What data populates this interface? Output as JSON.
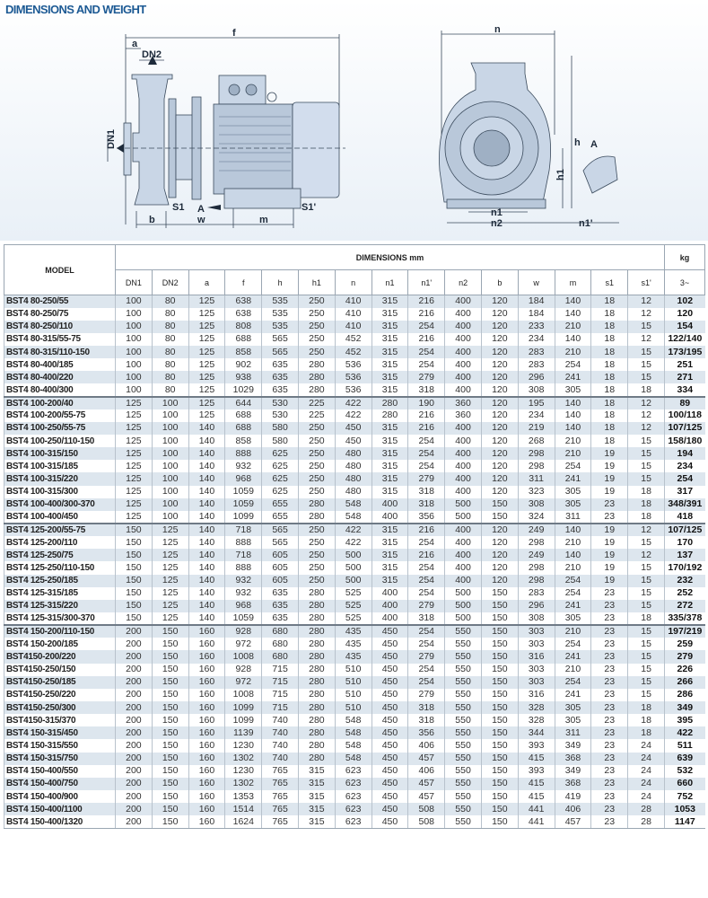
{
  "title": "DIMENSIONS AND WEIGHT",
  "drawing_labels": {
    "f": "f",
    "a": "a",
    "dn2": "DN2",
    "dn1": "DN1",
    "view_a": "A",
    "b": "b",
    "s1": "S1",
    "w": "w",
    "m": "m",
    "s1p": "S1'",
    "n": "n",
    "h": "h",
    "h1": "h1",
    "n1": "n1",
    "n2": "n2",
    "n1p": "n1'",
    "detail_a": "A"
  },
  "table": {
    "model_header": "MODEL",
    "dimensions_header": "DIMENSIONS mm",
    "kg_header": "kg",
    "kg_sub": "3~",
    "columns": [
      "DN1",
      "DN2",
      "a",
      "f",
      "h",
      "h1",
      "n",
      "n1",
      "n1'",
      "n2",
      "b",
      "w",
      "m",
      "s1",
      "s1'"
    ],
    "rows": [
      [
        "BST4 80-250/55",
        "100",
        "80",
        "125",
        "638",
        "535",
        "250",
        "410",
        "315",
        "216",
        "400",
        "120",
        "184",
        "140",
        "18",
        "12",
        "102"
      ],
      [
        "BST4 80-250/75",
        "100",
        "80",
        "125",
        "638",
        "535",
        "250",
        "410",
        "315",
        "216",
        "400",
        "120",
        "184",
        "140",
        "18",
        "12",
        "120"
      ],
      [
        "BST4 80-250/110",
        "100",
        "80",
        "125",
        "808",
        "535",
        "250",
        "410",
        "315",
        "254",
        "400",
        "120",
        "233",
        "210",
        "18",
        "15",
        "154"
      ],
      [
        "BST4 80-315/55-75",
        "100",
        "80",
        "125",
        "688",
        "565",
        "250",
        "452",
        "315",
        "216",
        "400",
        "120",
        "234",
        "140",
        "18",
        "12",
        "122/140"
      ],
      [
        "BST4 80-315/110-150",
        "100",
        "80",
        "125",
        "858",
        "565",
        "250",
        "452",
        "315",
        "254",
        "400",
        "120",
        "283",
        "210",
        "18",
        "15",
        "173/195"
      ],
      [
        "BST4 80-400/185",
        "100",
        "80",
        "125",
        "902",
        "635",
        "280",
        "536",
        "315",
        "254",
        "400",
        "120",
        "283",
        "254",
        "18",
        "15",
        "251"
      ],
      [
        "BST4 80-400/220",
        "100",
        "80",
        "125",
        "938",
        "635",
        "280",
        "536",
        "315",
        "279",
        "400",
        "120",
        "296",
        "241",
        "18",
        "15",
        "271"
      ],
      [
        "BST4 80-400/300",
        "100",
        "80",
        "125",
        "1029",
        "635",
        "280",
        "536",
        "315",
        "318",
        "400",
        "120",
        "308",
        "305",
        "18",
        "18",
        "334"
      ],
      [
        "BST4 100-200/40",
        "125",
        "100",
        "125",
        "644",
        "530",
        "225",
        "422",
        "280",
        "190",
        "360",
        "120",
        "195",
        "140",
        "18",
        "12",
        "89"
      ],
      [
        "BST4 100-200/55-75",
        "125",
        "100",
        "125",
        "688",
        "530",
        "225",
        "422",
        "280",
        "216",
        "360",
        "120",
        "234",
        "140",
        "18",
        "12",
        "100/118"
      ],
      [
        "BST4 100-250/55-75",
        "125",
        "100",
        "140",
        "688",
        "580",
        "250",
        "450",
        "315",
        "216",
        "400",
        "120",
        "219",
        "140",
        "18",
        "12",
        "107/125"
      ],
      [
        "BST4 100-250/110-150",
        "125",
        "100",
        "140",
        "858",
        "580",
        "250",
        "450",
        "315",
        "254",
        "400",
        "120",
        "268",
        "210",
        "18",
        "15",
        "158/180"
      ],
      [
        "BST4 100-315/150",
        "125",
        "100",
        "140",
        "888",
        "625",
        "250",
        "480",
        "315",
        "254",
        "400",
        "120",
        "298",
        "210",
        "19",
        "15",
        "194"
      ],
      [
        "BST4 100-315/185",
        "125",
        "100",
        "140",
        "932",
        "625",
        "250",
        "480",
        "315",
        "254",
        "400",
        "120",
        "298",
        "254",
        "19",
        "15",
        "234"
      ],
      [
        "BST4 100-315/220",
        "125",
        "100",
        "140",
        "968",
        "625",
        "250",
        "480",
        "315",
        "279",
        "400",
        "120",
        "311",
        "241",
        "19",
        "15",
        "254"
      ],
      [
        "BST4 100-315/300",
        "125",
        "100",
        "140",
        "1059",
        "625",
        "250",
        "480",
        "315",
        "318",
        "400",
        "120",
        "323",
        "305",
        "19",
        "18",
        "317"
      ],
      [
        "BST4 100-400/300-370",
        "125",
        "100",
        "140",
        "1059",
        "655",
        "280",
        "548",
        "400",
        "318",
        "500",
        "150",
        "308",
        "305",
        "23",
        "18",
        "348/391"
      ],
      [
        "BST4 100-400/450",
        "125",
        "100",
        "140",
        "1099",
        "655",
        "280",
        "548",
        "400",
        "356",
        "500",
        "150",
        "324",
        "311",
        "23",
        "18",
        "418"
      ],
      [
        "BST4 125-200/55-75",
        "150",
        "125",
        "140",
        "718",
        "565",
        "250",
        "422",
        "315",
        "216",
        "400",
        "120",
        "249",
        "140",
        "19",
        "12",
        "107/125"
      ],
      [
        "BST4 125-200/110",
        "150",
        "125",
        "140",
        "888",
        "565",
        "250",
        "422",
        "315",
        "254",
        "400",
        "120",
        "298",
        "210",
        "19",
        "15",
        "170"
      ],
      [
        "BST4 125-250/75",
        "150",
        "125",
        "140",
        "718",
        "605",
        "250",
        "500",
        "315",
        "216",
        "400",
        "120",
        "249",
        "140",
        "19",
        "12",
        "137"
      ],
      [
        "BST4 125-250/110-150",
        "150",
        "125",
        "140",
        "888",
        "605",
        "250",
        "500",
        "315",
        "254",
        "400",
        "120",
        "298",
        "210",
        "19",
        "15",
        "170/192"
      ],
      [
        "BST4 125-250/185",
        "150",
        "125",
        "140",
        "932",
        "605",
        "250",
        "500",
        "315",
        "254",
        "400",
        "120",
        "298",
        "254",
        "19",
        "15",
        "232"
      ],
      [
        "BST4 125-315/185",
        "150",
        "125",
        "140",
        "932",
        "635",
        "280",
        "525",
        "400",
        "254",
        "500",
        "150",
        "283",
        "254",
        "23",
        "15",
        "252"
      ],
      [
        "BST4 125-315/220",
        "150",
        "125",
        "140",
        "968",
        "635",
        "280",
        "525",
        "400",
        "279",
        "500",
        "150",
        "296",
        "241",
        "23",
        "15",
        "272"
      ],
      [
        "BST4 125-315/300-370",
        "150",
        "125",
        "140",
        "1059",
        "635",
        "280",
        "525",
        "400",
        "318",
        "500",
        "150",
        "308",
        "305",
        "23",
        "18",
        "335/378"
      ],
      [
        "BST4 150-200/110-150",
        "200",
        "150",
        "160",
        "928",
        "680",
        "280",
        "435",
        "450",
        "254",
        "550",
        "150",
        "303",
        "210",
        "23",
        "15",
        "197/219"
      ],
      [
        "BST4 150-200/185",
        "200",
        "150",
        "160",
        "972",
        "680",
        "280",
        "435",
        "450",
        "254",
        "550",
        "150",
        "303",
        "254",
        "23",
        "15",
        "259"
      ],
      [
        "BST4150-200/220",
        "200",
        "150",
        "160",
        "1008",
        "680",
        "280",
        "435",
        "450",
        "279",
        "550",
        "150",
        "316",
        "241",
        "23",
        "15",
        "279"
      ],
      [
        "BST4150-250/150",
        "200",
        "150",
        "160",
        "928",
        "715",
        "280",
        "510",
        "450",
        "254",
        "550",
        "150",
        "303",
        "210",
        "23",
        "15",
        "226"
      ],
      [
        "BST4150-250/185",
        "200",
        "150",
        "160",
        "972",
        "715",
        "280",
        "510",
        "450",
        "254",
        "550",
        "150",
        "303",
        "254",
        "23",
        "15",
        "266"
      ],
      [
        "BST4150-250/220",
        "200",
        "150",
        "160",
        "1008",
        "715",
        "280",
        "510",
        "450",
        "279",
        "550",
        "150",
        "316",
        "241",
        "23",
        "15",
        "286"
      ],
      [
        "BST4150-250/300",
        "200",
        "150",
        "160",
        "1099",
        "715",
        "280",
        "510",
        "450",
        "318",
        "550",
        "150",
        "328",
        "305",
        "23",
        "18",
        "349"
      ],
      [
        "BST4150-315/370",
        "200",
        "150",
        "160",
        "1099",
        "740",
        "280",
        "548",
        "450",
        "318",
        "550",
        "150",
        "328",
        "305",
        "23",
        "18",
        "395"
      ],
      [
        "BST4 150-315/450",
        "200",
        "150",
        "160",
        "1139",
        "740",
        "280",
        "548",
        "450",
        "356",
        "550",
        "150",
        "344",
        "311",
        "23",
        "18",
        "422"
      ],
      [
        "BST4 150-315/550",
        "200",
        "150",
        "160",
        "1230",
        "740",
        "280",
        "548",
        "450",
        "406",
        "550",
        "150",
        "393",
        "349",
        "23",
        "24",
        "511"
      ],
      [
        "BST4 150-315/750",
        "200",
        "150",
        "160",
        "1302",
        "740",
        "280",
        "548",
        "450",
        "457",
        "550",
        "150",
        "415",
        "368",
        "23",
        "24",
        "639"
      ],
      [
        "BST4 150-400/550",
        "200",
        "150",
        "160",
        "1230",
        "765",
        "315",
        "623",
        "450",
        "406",
        "550",
        "150",
        "393",
        "349",
        "23",
        "24",
        "532"
      ],
      [
        "BST4 150-400/750",
        "200",
        "150",
        "160",
        "1302",
        "765",
        "315",
        "623",
        "450",
        "457",
        "550",
        "150",
        "415",
        "368",
        "23",
        "24",
        "660"
      ],
      [
        "BST4 150-400/900",
        "200",
        "150",
        "160",
        "1353",
        "765",
        "315",
        "623",
        "450",
        "457",
        "550",
        "150",
        "415",
        "419",
        "23",
        "24",
        "752"
      ],
      [
        "BST4 150-400/1100",
        "200",
        "150",
        "160",
        "1514",
        "765",
        "315",
        "623",
        "450",
        "508",
        "550",
        "150",
        "441",
        "406",
        "23",
        "28",
        "1053"
      ],
      [
        "BST4 150-400/1320",
        "200",
        "150",
        "160",
        "1624",
        "765",
        "315",
        "623",
        "450",
        "508",
        "550",
        "150",
        "441",
        "457",
        "23",
        "28",
        "1147"
      ]
    ]
  }
}
